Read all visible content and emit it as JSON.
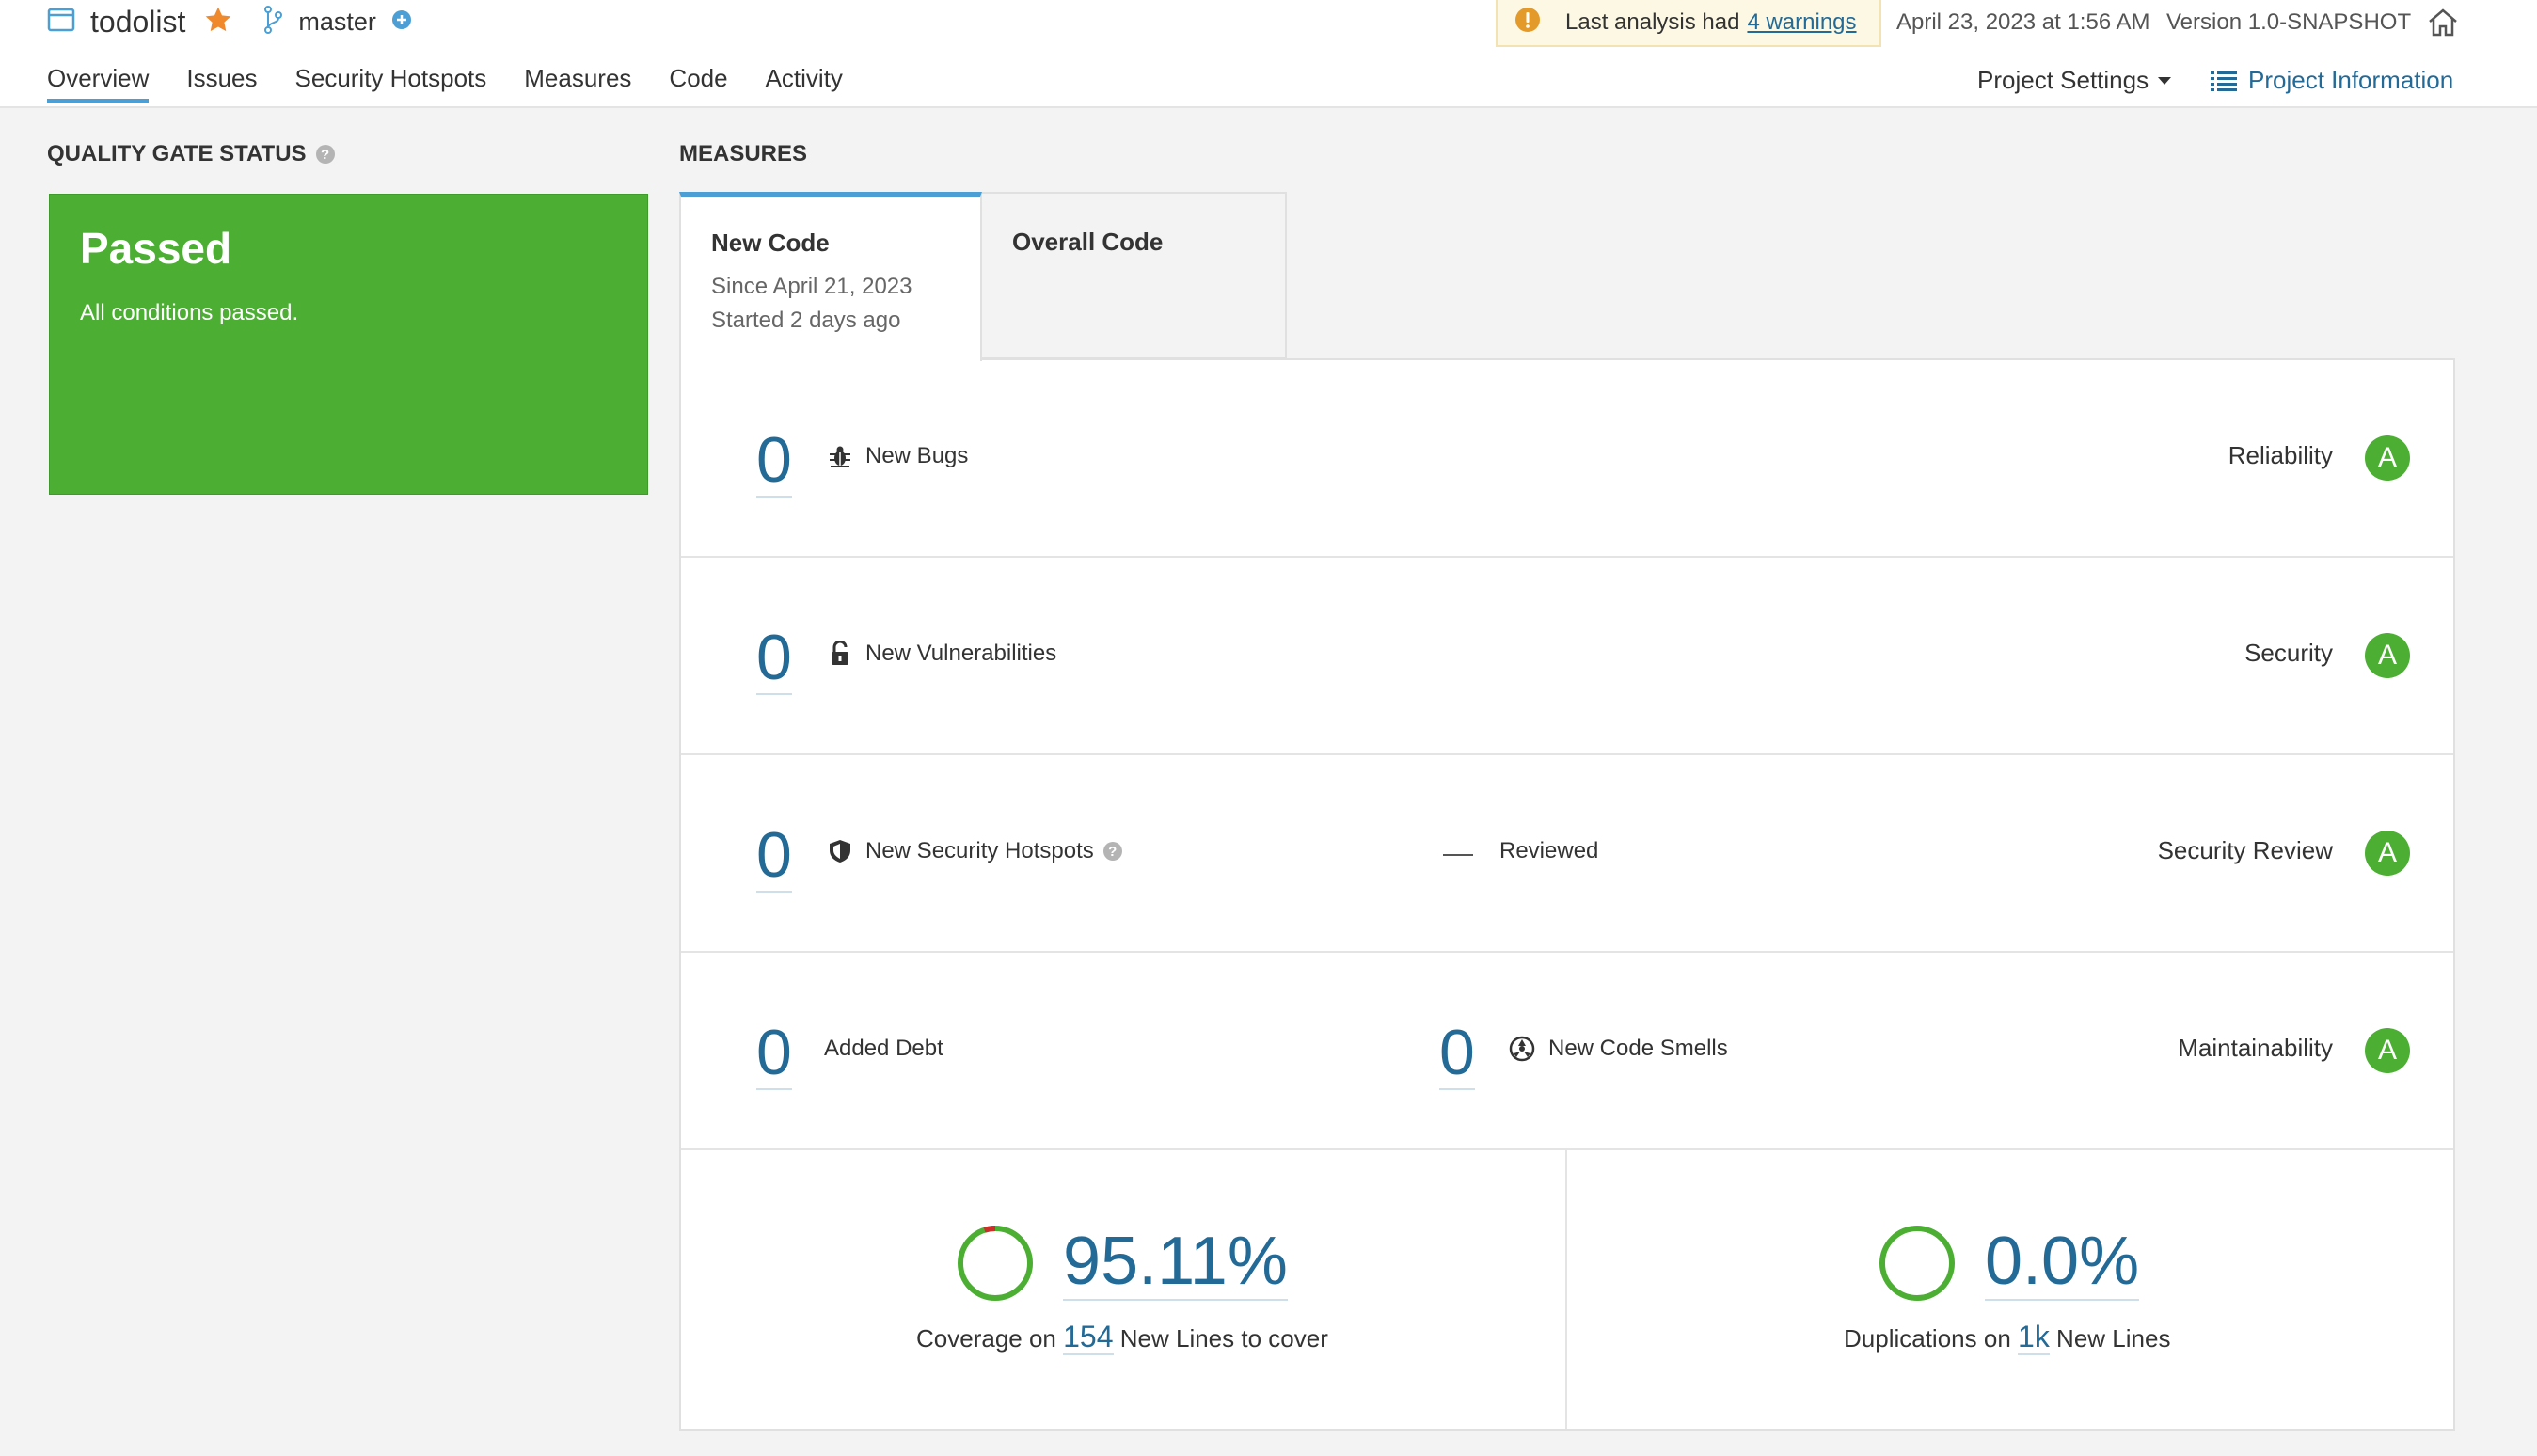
{
  "header": {
    "project_name": "todolist",
    "branch": "master",
    "warning_prefix": "Last analysis had",
    "warning_link": "4 warnings",
    "analysis_date": "April 23, 2023 at 1:56 AM",
    "version": "Version 1.0-SNAPSHOT",
    "nav": [
      "Overview",
      "Issues",
      "Security Hotspots",
      "Measures",
      "Code",
      "Activity"
    ],
    "project_settings": "Project Settings",
    "project_information": "Project Information"
  },
  "quality_gate": {
    "title": "QUALITY GATE STATUS",
    "status": "Passed",
    "message": "All conditions passed."
  },
  "measures": {
    "title": "MEASURES",
    "tabs": {
      "new_code": {
        "label": "New Code",
        "since": "Since April 21, 2023",
        "started": "Started 2 days ago"
      },
      "overall_code": {
        "label": "Overall Code"
      }
    },
    "rows": {
      "reliability": {
        "value": "0",
        "metric": "New Bugs",
        "label": "Reliability",
        "rating": "A"
      },
      "security": {
        "value": "0",
        "metric": "New Vulnerabilities",
        "label": "Security",
        "rating": "A"
      },
      "security_review": {
        "value": "0",
        "metric": "New Security Hotspots",
        "reviewed": "Reviewed",
        "label": "Security Review",
        "rating": "A"
      },
      "maintainability": {
        "debt_value": "0",
        "debt_label": "Added Debt",
        "smells_value": "0",
        "smells_label": "New Code Smells",
        "label": "Maintainability",
        "rating": "A"
      }
    },
    "coverage": {
      "percent": "95.11%",
      "prefix": "Coverage on",
      "lines": "154",
      "suffix": "New Lines to cover"
    },
    "duplications": {
      "percent": "0.0%",
      "prefix": "Duplications on",
      "lines": "1k",
      "suffix": "New Lines"
    }
  },
  "colors": {
    "accent": "#236a97",
    "passed": "#4caf33",
    "tab_active": "#4b9fd5",
    "star": "#f0882c",
    "warning": "#e39a2a"
  }
}
